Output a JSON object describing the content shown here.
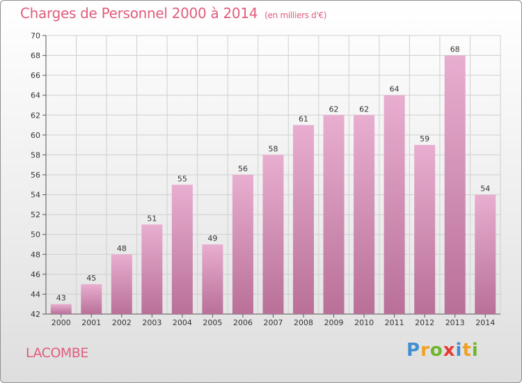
{
  "header": {
    "title": "Charges de Personnel 2000 à 2014",
    "subtitle": "(en milliers d'€)"
  },
  "commune": "LACOMBE",
  "logo": {
    "text": "Proxiti",
    "letters": [
      {
        "ch": "P",
        "color": "#3f8fd2"
      },
      {
        "ch": "r",
        "color": "#f0a020"
      },
      {
        "ch": "o",
        "color": "#6fb62c"
      },
      {
        "ch": "x",
        "color": "#e8392f"
      },
      {
        "ch": "i",
        "color": "#3f8fd2"
      },
      {
        "ch": "t",
        "color": "#f0a020"
      },
      {
        "ch": "i",
        "color": "#6fb62c"
      }
    ]
  },
  "colors": {
    "bar_top": "#e8aed0",
    "bar_bottom": "#b97098",
    "title": "#e05c7c",
    "grid": "#cfcfcf"
  },
  "chart_data": {
    "type": "bar",
    "title": "Charges de Personnel 2000 à 2014",
    "subtitle": "(en milliers d'€)",
    "xlabel": "",
    "ylabel": "",
    "categories": [
      "2000",
      "2001",
      "2002",
      "2003",
      "2004",
      "2005",
      "2006",
      "2007",
      "2008",
      "2009",
      "2010",
      "2011",
      "2012",
      "2013",
      "2014"
    ],
    "values": [
      43,
      45,
      48,
      51,
      55,
      49,
      56,
      58,
      61,
      62,
      62,
      64,
      59,
      68,
      54
    ],
    "ylim": [
      42,
      70
    ],
    "yticks": [
      42,
      44,
      46,
      48,
      50,
      52,
      54,
      56,
      58,
      60,
      62,
      64,
      66,
      68,
      70
    ],
    "grid": true,
    "data_labels": true
  }
}
